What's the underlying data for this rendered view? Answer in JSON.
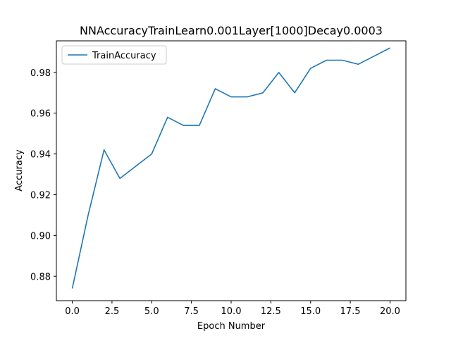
{
  "chart_data": {
    "type": "line",
    "title": "NNAccuracyTrainLearn0.001Layer[1000]Decay0.0003",
    "xlabel": "Epoch Number",
    "ylabel": "Accuracy",
    "xlim": [
      -1.0,
      21.0
    ],
    "ylim": [
      0.868,
      0.9955
    ],
    "xticks": [
      0.0,
      2.5,
      5.0,
      7.5,
      10.0,
      12.5,
      15.0,
      17.5,
      20.0
    ],
    "xtick_labels": [
      "0.0",
      "2.5",
      "5.0",
      "7.5",
      "10.0",
      "12.5",
      "15.0",
      "17.5",
      "20.0"
    ],
    "yticks": [
      0.88,
      0.9,
      0.92,
      0.94,
      0.96,
      0.98
    ],
    "ytick_labels": [
      "0.88",
      "0.90",
      "0.92",
      "0.94",
      "0.96",
      "0.98"
    ],
    "grid": false,
    "legend_position": "top-left",
    "series": [
      {
        "name": "TrainAccuracy",
        "color": "#1f77b4",
        "x": [
          0,
          1,
          2,
          3,
          4,
          5,
          6,
          7,
          8,
          9,
          10,
          11,
          12,
          13,
          14,
          15,
          16,
          17,
          18,
          19,
          20
        ],
        "y": [
          0.874,
          0.91,
          0.942,
          0.928,
          0.934,
          0.94,
          0.958,
          0.954,
          0.954,
          0.972,
          0.968,
          0.968,
          0.97,
          0.98,
          0.97,
          0.982,
          0.986,
          0.986,
          0.984,
          0.988,
          0.992
        ]
      }
    ]
  }
}
